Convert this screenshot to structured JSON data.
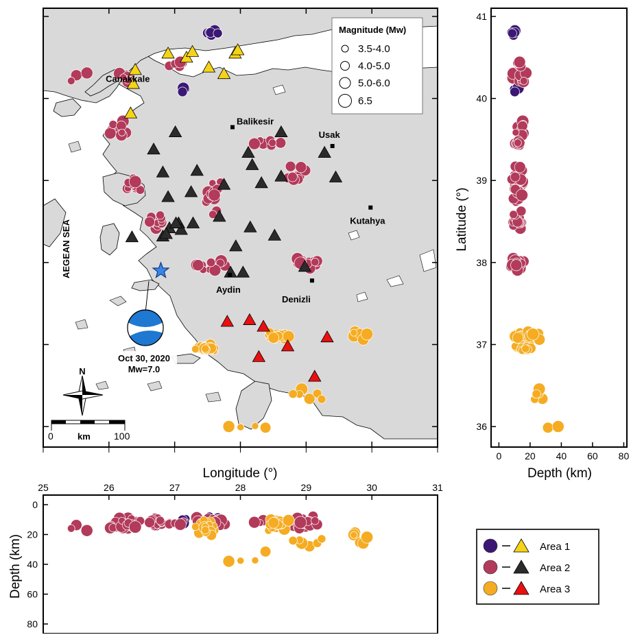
{
  "map": {
    "sea_label": "AEGEAN SEA",
    "cities": [
      {
        "name": "Canakkale",
        "lon": 26.41,
        "lat": 40.15,
        "marker": false
      },
      {
        "name": "Balikesir",
        "lon": 27.88,
        "lat": 39.65,
        "marker": true
      },
      {
        "name": "Usak",
        "lon": 29.4,
        "lat": 39.42,
        "marker": true
      },
      {
        "name": "Kutahya",
        "lon": 29.98,
        "lat": 38.67,
        "marker": true
      },
      {
        "name": "Aydin",
        "lon": 27.84,
        "lat": 37.85,
        "marker": true
      },
      {
        "name": "Denizli",
        "lon": 29.09,
        "lat": 37.78,
        "marker": true
      }
    ],
    "mainshock": {
      "lon": 26.79,
      "lat": 37.9,
      "date_label": "Oct 30, 2020",
      "mag_label": "Mw=7.0"
    },
    "north_label": "N",
    "scalebar": {
      "min_label": "0",
      "unit_label": "km",
      "max_label": "100"
    },
    "xlabel": "Longitude (°)",
    "xticks": [
      25,
      26,
      27,
      28,
      29,
      30,
      31
    ],
    "lon_range": [
      25,
      31
    ],
    "lat_range": [
      35.75,
      41.1
    ]
  },
  "magnitude_legend": {
    "title": "Magnitude (Mw)",
    "items": [
      "3.5-4.0",
      "4.0-5.0",
      "5.0-6.0",
      "6.5"
    ]
  },
  "depth_lat_panel": {
    "xlabel": "Depth (km)",
    "ylabel": "Latitude (°)",
    "xticks": [
      0,
      20,
      40,
      60,
      80
    ],
    "yticks": [
      36,
      37,
      38,
      39,
      40,
      41
    ],
    "depth_range": [
      -5,
      82
    ],
    "lat_range": [
      35.75,
      41.1
    ]
  },
  "lon_depth_panel": {
    "ylabel": "Depth (km)",
    "xticks": [
      25,
      26,
      27,
      28,
      29,
      30,
      31
    ],
    "yticks": [
      0,
      20,
      40,
      60,
      80
    ]
  },
  "area_legend": {
    "items": [
      {
        "label": "Area 1",
        "circle": "#3a1873",
        "triangle": "#f5d418"
      },
      {
        "label": "Area 2",
        "circle": "#b23a5a",
        "triangle": "#2b2b2b"
      },
      {
        "label": "Area 3",
        "circle": "#f5ac22",
        "triangle": "#e81010"
      }
    ]
  },
  "chart_data": {
    "type": "scatter",
    "colors": {
      "area1": "#3a1873",
      "area2": "#b23a5a",
      "area3": "#f5ac22",
      "land": "#d9d9d9",
      "mainshock": "#3a86e8"
    },
    "stations": [
      {
        "area": 1,
        "points": [
          [
            26.4,
            40.35
          ],
          [
            26.37,
            40.18
          ],
          [
            26.9,
            40.55
          ],
          [
            27.18,
            40.5
          ],
          [
            27.27,
            40.57
          ],
          [
            27.52,
            40.38
          ],
          [
            27.75,
            40.3
          ],
          [
            27.92,
            40.55
          ],
          [
            27.96,
            40.59
          ],
          [
            26.33,
            39.82
          ]
        ]
      },
      {
        "area": 2,
        "points": [
          [
            27.01,
            39.59
          ],
          [
            26.68,
            39.38
          ],
          [
            27.34,
            39.12
          ],
          [
            26.82,
            39.1
          ],
          [
            26.9,
            38.8
          ],
          [
            27.25,
            38.86
          ],
          [
            27.75,
            38.95
          ],
          [
            28.12,
            39.34
          ],
          [
            28.18,
            39.19
          ],
          [
            28.62,
            39.59
          ],
          [
            29.28,
            39.34
          ],
          [
            29.45,
            39.04
          ],
          [
            28.32,
            38.97
          ],
          [
            28.62,
            39.05
          ],
          [
            27.06,
            38.48
          ],
          [
            27.28,
            38.48
          ],
          [
            27.68,
            38.56
          ],
          [
            28.15,
            38.43
          ],
          [
            28.52,
            38.33
          ],
          [
            27.1,
            38.4
          ],
          [
            26.35,
            38.31
          ],
          [
            26.82,
            38.32
          ],
          [
            26.92,
            38.42
          ],
          [
            27.93,
            38.2
          ],
          [
            27.85,
            37.88
          ],
          [
            28.04,
            37.88
          ],
          [
            28.98,
            37.95
          ],
          [
            27.02,
            38.48
          ],
          [
            26.87,
            38.35
          ]
        ]
      },
      {
        "area": 3,
        "points": [
          [
            27.8,
            37.28
          ],
          [
            28.14,
            37.3
          ],
          [
            28.35,
            37.22
          ],
          [
            28.72,
            36.98
          ],
          [
            29.32,
            37.09
          ],
          [
            28.28,
            36.85
          ],
          [
            29.13,
            36.61
          ]
        ]
      }
    ],
    "events_note": "circles: area color by region; size by magnitude class"
  }
}
